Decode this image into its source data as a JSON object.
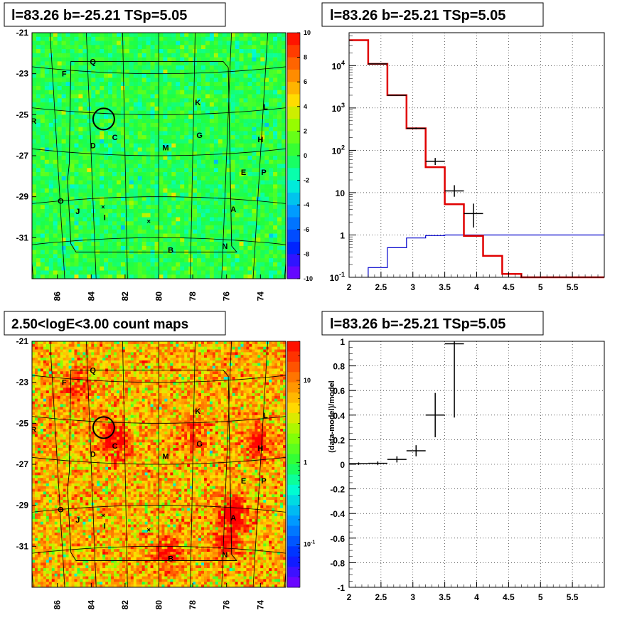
{
  "panels": {
    "map1": {
      "title": "l=83.26 b=-25.21 TSp=5.05",
      "xticks": [
        "86",
        "84",
        "82",
        "80",
        "78",
        "76",
        "74"
      ],
      "yticks": [
        "-21",
        "-23",
        "-25",
        "-27",
        "-29",
        "-31"
      ],
      "zticks": [
        "10",
        "8",
        "6",
        "4",
        "2",
        "0",
        "-2",
        "-4",
        "-6",
        "-8",
        "-10"
      ],
      "labels": [
        "Q",
        "F",
        "K",
        "L",
        "R",
        "C",
        "G",
        "H",
        "D",
        "M",
        "E",
        "P",
        "O",
        "J",
        "I",
        "A",
        "B",
        "N"
      ]
    },
    "spectrum": {
      "title": "l=83.26 b=-25.21 TSp=5.05",
      "xticks": [
        "2",
        "2.5",
        "3",
        "3.5",
        "4",
        "4.5",
        "5",
        "5.5"
      ],
      "yticks": [
        "10^4",
        "10^3",
        "10^2",
        "10",
        "1",
        "10^-1"
      ]
    },
    "map2": {
      "title": "2.50<logE<3.00 count maps",
      "xticks": [
        "86",
        "84",
        "82",
        "80",
        "78",
        "76",
        "74"
      ],
      "yticks": [
        "-21",
        "-23",
        "-25",
        "-27",
        "-29",
        "-31"
      ],
      "zticks": [
        "10",
        "1",
        "10^-1"
      ],
      "labels": [
        "Q",
        "F",
        "K",
        "L",
        "R",
        "C",
        "G",
        "H",
        "D",
        "M",
        "E",
        "P",
        "O",
        "J",
        "I",
        "A",
        "B",
        "N"
      ]
    },
    "residual": {
      "title": "l=83.26 b=-25.21 TSp=5.05",
      "ylabel": "(data-model)/model",
      "xticks": [
        "2",
        "2.5",
        "3",
        "3.5",
        "4",
        "4.5",
        "5",
        "5.5"
      ],
      "yticks": [
        "1",
        "0.8",
        "0.6",
        "0.4",
        "0.2",
        "0",
        "-0.2",
        "-0.4",
        "-0.6",
        "-0.8",
        "-1"
      ]
    }
  },
  "colors": {
    "model": "#e00000",
    "background": "#0000cc",
    "data": "#000000"
  },
  "chart_data": [
    {
      "type": "heatmap",
      "title": "l=83.26 b=-25.21 TSp=5.05",
      "xlim": [
        87.5,
        72.5
      ],
      "ylim": [
        -33,
        -21
      ],
      "zlim": [
        -10,
        10
      ],
      "source_circle": {
        "l": 83.26,
        "b": -25.21
      }
    },
    {
      "type": "line",
      "title": "l=83.26 b=-25.21 TSp=5.05",
      "log_y": true,
      "xlim": [
        2,
        6
      ],
      "ylim": [
        0.1,
        60000
      ],
      "series": [
        {
          "role": "model",
          "edges": [
            2.0,
            2.3,
            2.6,
            2.9,
            3.2,
            3.5,
            3.8,
            4.1,
            4.4,
            4.7,
            5.0,
            5.3,
            5.6,
            5.9,
            6.0
          ],
          "values": [
            40000,
            11000,
            2000,
            330,
            40,
            5.3,
            0.95,
            0.32,
            0.12,
            0.1,
            0.1,
            0.1,
            0.1,
            0.1
          ]
        },
        {
          "role": "background",
          "edges": [
            2.3,
            2.6,
            2.9,
            3.2,
            3.5,
            3.8,
            4.1,
            6.0
          ],
          "values": [
            0.17,
            0.5,
            0.85,
            0.97,
            1.0,
            1.0,
            1.0
          ]
        },
        {
          "role": "data",
          "x": [
            2.45,
            2.75,
            3.05,
            3.35,
            3.65,
            3.95
          ],
          "y": [
            11000,
            2000,
            330,
            55,
            11,
            3.2
          ],
          "xerr": 0.15,
          "ylo": [
            10800,
            1950,
            315,
            45,
            8,
            1.5
          ],
          "yhi": [
            11200,
            2050,
            345,
            66,
            15,
            5.5
          ]
        }
      ]
    },
    {
      "type": "heatmap",
      "title": "2.50<logE<3.00 count maps",
      "xlim": [
        87.5,
        72.5
      ],
      "ylim": [
        -33,
        -21
      ],
      "log_z": true,
      "zlim": [
        0.03,
        30
      ]
    },
    {
      "type": "scatter",
      "title": "l=83.26 b=-25.21 TSp=5.05",
      "ylabel": "(data-model)/model",
      "xlim": [
        2,
        6
      ],
      "ylim": [
        -1,
        1
      ],
      "x": [
        2.15,
        2.45,
        2.75,
        3.05,
        3.35,
        3.65
      ],
      "y": [
        0.005,
        0.008,
        0.04,
        0.11,
        0.4,
        0.98
      ],
      "xerr": 0.15,
      "yerr": [
        0.01,
        0.015,
        0.025,
        0.045,
        0.18,
        0.6
      ]
    }
  ]
}
